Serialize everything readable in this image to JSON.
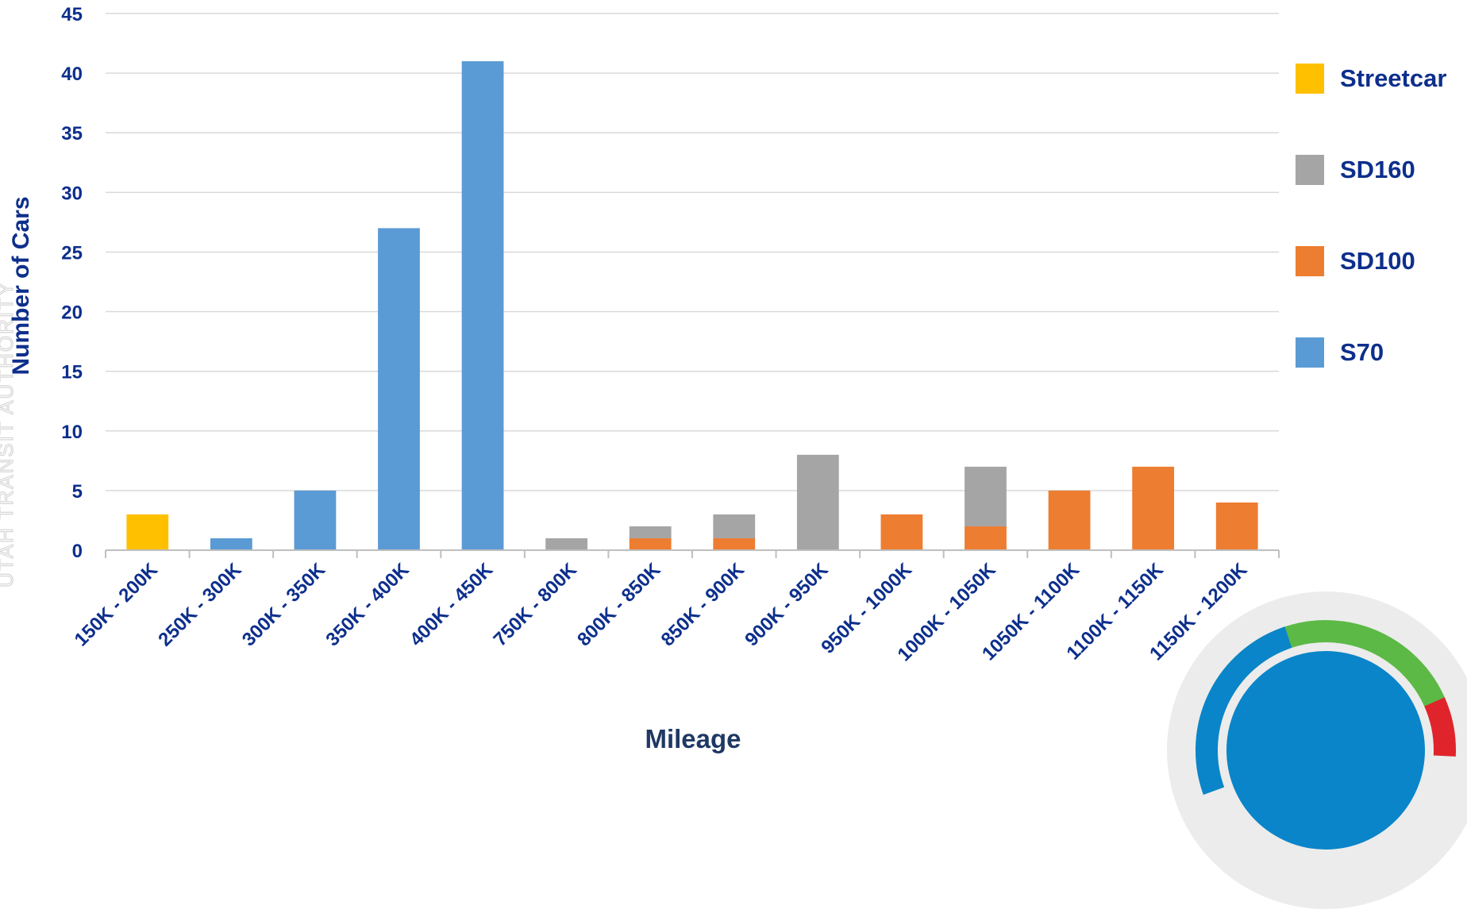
{
  "chart_data": {
    "type": "bar",
    "stacked": true,
    "title": "",
    "xlabel": "Mileage",
    "ylabel": "Number of Cars",
    "ylim": [
      0,
      45
    ],
    "yticks": [
      0,
      5,
      10,
      15,
      20,
      25,
      30,
      35,
      40,
      45
    ],
    "grid": true,
    "legend_position": "right",
    "categories": [
      "150K - 200K",
      "250K - 300K",
      "300K - 350K",
      "350K - 400K",
      "400K - 450K",
      "750K - 800K",
      "800K - 850K",
      "850K - 900K",
      "900K - 950K",
      "950K - 1000K",
      "1000K - 1050K",
      "1050K - 1100K",
      "1100K - 1150K",
      "1150K - 1200K"
    ],
    "series": [
      {
        "name": "S70",
        "color": "#5b9bd5",
        "values": [
          0,
          1,
          5,
          27,
          41,
          0,
          0,
          0,
          0,
          0,
          0,
          0,
          0,
          0
        ]
      },
      {
        "name": "SD100",
        "color": "#ed7d31",
        "values": [
          0,
          0,
          0,
          0,
          0,
          0,
          1,
          1,
          0,
          3,
          2,
          5,
          7,
          4
        ]
      },
      {
        "name": "SD160",
        "color": "#a5a5a5",
        "values": [
          0,
          0,
          0,
          0,
          0,
          1,
          1,
          2,
          8,
          0,
          5,
          0,
          0,
          0
        ]
      },
      {
        "name": "Streetcar",
        "color": "#ffc000",
        "values": [
          3,
          0,
          0,
          0,
          0,
          0,
          0,
          0,
          0,
          0,
          0,
          0,
          0,
          0
        ]
      }
    ],
    "legend_order": [
      "Streetcar",
      "SD160",
      "SD100",
      "S70"
    ]
  },
  "colors": {
    "axis_text": "#0d2f8c",
    "gridline": "#d9d9d9",
    "logo_blue": "#0a85c9",
    "logo_green": "#5cb946",
    "logo_red": "#e0242b",
    "logo_ring": "#ececec"
  },
  "watermark": "UTAH TRANSIT AUTHORITY"
}
